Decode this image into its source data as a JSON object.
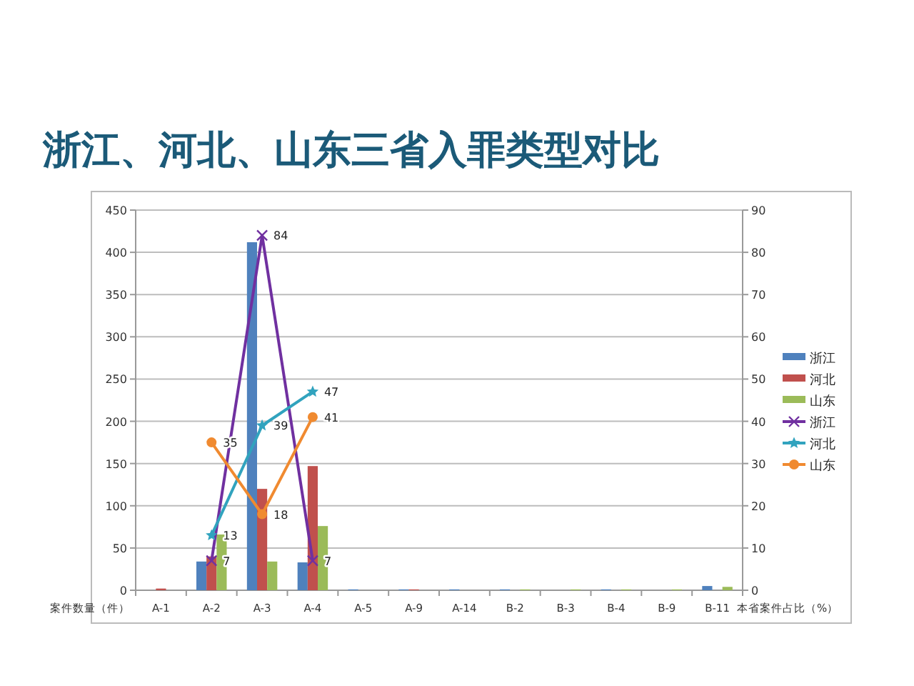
{
  "chart_data": {
    "type": "bar",
    "title": "浙江、河北、山东三省入罪类型对比",
    "ylabel": "案件数量（件）",
    "y2label": "本省案件占比（%）",
    "categories": [
      "A-1",
      "A-2",
      "A-3",
      "A-4",
      "A-5",
      "A-9",
      "A-14",
      "B-2",
      "B-3",
      "B-4",
      "B-9",
      "B-11"
    ],
    "series": [
      {
        "name": "浙江",
        "type": "bar",
        "color": "#4f81bd",
        "values": [
          0,
          34,
          412,
          33,
          1,
          1,
          1,
          1,
          0,
          1,
          0,
          5
        ]
      },
      {
        "name": "河北",
        "type": "bar",
        "color": "#c0504d",
        "values": [
          2,
          40,
          120,
          147,
          0,
          1,
          0,
          0,
          0,
          0,
          0,
          0
        ]
      },
      {
        "name": "山东",
        "type": "bar",
        "color": "#9bbb59",
        "values": [
          0,
          66,
          34,
          76,
          0,
          0,
          0,
          1,
          1,
          1,
          1,
          4
        ]
      },
      {
        "name": "浙江",
        "type": "line",
        "axis": "y2",
        "marker": "cross",
        "color": "#7030a0",
        "values": [
          null,
          7,
          84,
          7,
          null,
          null,
          null,
          null,
          null,
          null,
          null,
          null
        ],
        "value_labels": [
          null,
          "7",
          "84",
          "7",
          null,
          null,
          null,
          null,
          null,
          null,
          null,
          null
        ]
      },
      {
        "name": "河北",
        "type": "line",
        "axis": "y2",
        "marker": "star",
        "color": "#31a3be",
        "values": [
          null,
          13,
          39,
          47,
          null,
          null,
          null,
          null,
          null,
          null,
          null,
          null
        ],
        "value_labels": [
          null,
          "13",
          "39",
          "47",
          null,
          null,
          null,
          null,
          null,
          null,
          null,
          null
        ]
      },
      {
        "name": "山东",
        "type": "line",
        "axis": "y2",
        "marker": "circle",
        "color": "#f08a30",
        "values": [
          null,
          35,
          18,
          41,
          null,
          null,
          null,
          null,
          null,
          null,
          null,
          null
        ],
        "value_labels": [
          null,
          "35",
          "18",
          "41",
          null,
          null,
          null,
          null,
          null,
          null,
          null,
          null
        ]
      }
    ],
    "ylim": [
      0,
      450
    ],
    "yticks": [
      0,
      50,
      100,
      150,
      200,
      250,
      300,
      350,
      400,
      450
    ],
    "y2lim": [
      0,
      90
    ],
    "y2ticks": [
      0,
      10,
      20,
      30,
      40,
      50,
      60,
      70,
      80,
      90
    ],
    "grid": "y",
    "legend": "right"
  }
}
